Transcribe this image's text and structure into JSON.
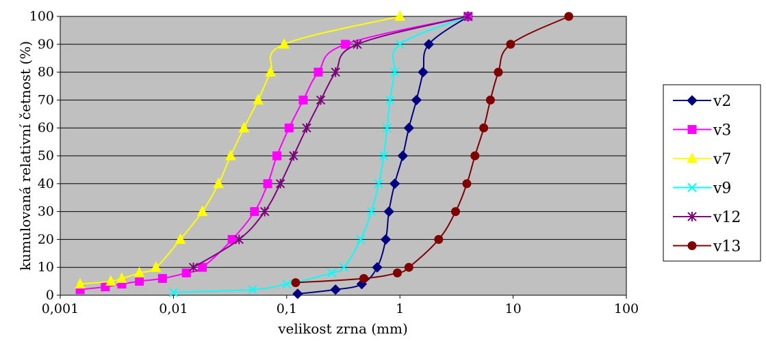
{
  "chart_data": {
    "type": "line",
    "title": "",
    "xlabel": "velikost zrna (mm)",
    "ylabel": "kumulovaná relativní četnost (%)",
    "x_scale": "log",
    "xlim": [
      0.001,
      100
    ],
    "ylim": [
      0,
      100
    ],
    "x_ticks": [
      "0,001",
      "0,01",
      "0,1",
      "1",
      "10",
      "100"
    ],
    "y_ticks": [
      "0",
      "10",
      "20",
      "30",
      "40",
      "50",
      "60",
      "70",
      "80",
      "90",
      "100"
    ],
    "grid": "horizontal",
    "plot_background": "#c0c0c0",
    "legend_position": "right",
    "series": [
      {
        "name": "v2",
        "color": "#000080",
        "marker": "diamond",
        "points": [
          [
            0.125,
            0.5
          ],
          [
            0.27,
            2
          ],
          [
            0.46,
            4
          ],
          [
            0.63,
            10
          ],
          [
            0.75,
            20
          ],
          [
            0.8,
            30
          ],
          [
            0.9,
            40
          ],
          [
            1.06,
            50
          ],
          [
            1.2,
            60
          ],
          [
            1.4,
            70
          ],
          [
            1.6,
            80
          ],
          [
            1.8,
            90
          ],
          [
            4.0,
            100
          ]
        ]
      },
      {
        "name": "v3",
        "color": "#ff00ff",
        "marker": "square",
        "points": [
          [
            0.0015,
            2
          ],
          [
            0.0025,
            3
          ],
          [
            0.0035,
            4
          ],
          [
            0.005,
            5
          ],
          [
            0.008,
            6
          ],
          [
            0.013,
            8
          ],
          [
            0.018,
            10
          ],
          [
            0.033,
            20
          ],
          [
            0.052,
            30
          ],
          [
            0.068,
            40
          ],
          [
            0.082,
            50
          ],
          [
            0.105,
            60
          ],
          [
            0.14,
            70
          ],
          [
            0.19,
            80
          ],
          [
            0.33,
            90
          ],
          [
            4.0,
            100
          ]
        ]
      },
      {
        "name": "v7",
        "color": "#ffff00",
        "marker": "triangle",
        "points": [
          [
            0.0015,
            4
          ],
          [
            0.0028,
            5
          ],
          [
            0.0035,
            6
          ],
          [
            0.005,
            8
          ],
          [
            0.007,
            10
          ],
          [
            0.0115,
            20
          ],
          [
            0.018,
            30
          ],
          [
            0.025,
            40
          ],
          [
            0.032,
            50
          ],
          [
            0.042,
            60
          ],
          [
            0.056,
            70
          ],
          [
            0.072,
            80
          ],
          [
            0.095,
            90
          ],
          [
            1.0,
            100
          ]
        ]
      },
      {
        "name": "v9",
        "color": "#00ffff",
        "marker": "x",
        "points": [
          [
            0.01,
            1
          ],
          [
            0.05,
            2
          ],
          [
            0.1,
            4
          ],
          [
            0.25,
            8
          ],
          [
            0.32,
            10
          ],
          [
            0.45,
            20
          ],
          [
            0.56,
            30
          ],
          [
            0.65,
            40
          ],
          [
            0.72,
            50
          ],
          [
            0.77,
            60
          ],
          [
            0.82,
            70
          ],
          [
            0.9,
            80
          ],
          [
            1.0,
            90
          ],
          [
            4.0,
            100
          ]
        ]
      },
      {
        "name": "v12",
        "color": "#800080",
        "marker": "star",
        "points": [
          [
            0.015,
            10
          ],
          [
            0.038,
            20
          ],
          [
            0.064,
            30
          ],
          [
            0.088,
            40
          ],
          [
            0.115,
            50
          ],
          [
            0.15,
            60
          ],
          [
            0.2,
            70
          ],
          [
            0.27,
            80
          ],
          [
            0.42,
            90
          ],
          [
            4.0,
            100
          ]
        ]
      },
      {
        "name": "v13",
        "color": "#800000",
        "marker": "circle",
        "points": [
          [
            0.12,
            4.5
          ],
          [
            0.48,
            6
          ],
          [
            0.95,
            8
          ],
          [
            1.2,
            10
          ],
          [
            2.2,
            20
          ],
          [
            3.1,
            30
          ],
          [
            3.9,
            40
          ],
          [
            4.6,
            50
          ],
          [
            5.5,
            60
          ],
          [
            6.3,
            70
          ],
          [
            7.4,
            80
          ],
          [
            9.5,
            90
          ],
          [
            31,
            100
          ]
        ]
      }
    ]
  }
}
